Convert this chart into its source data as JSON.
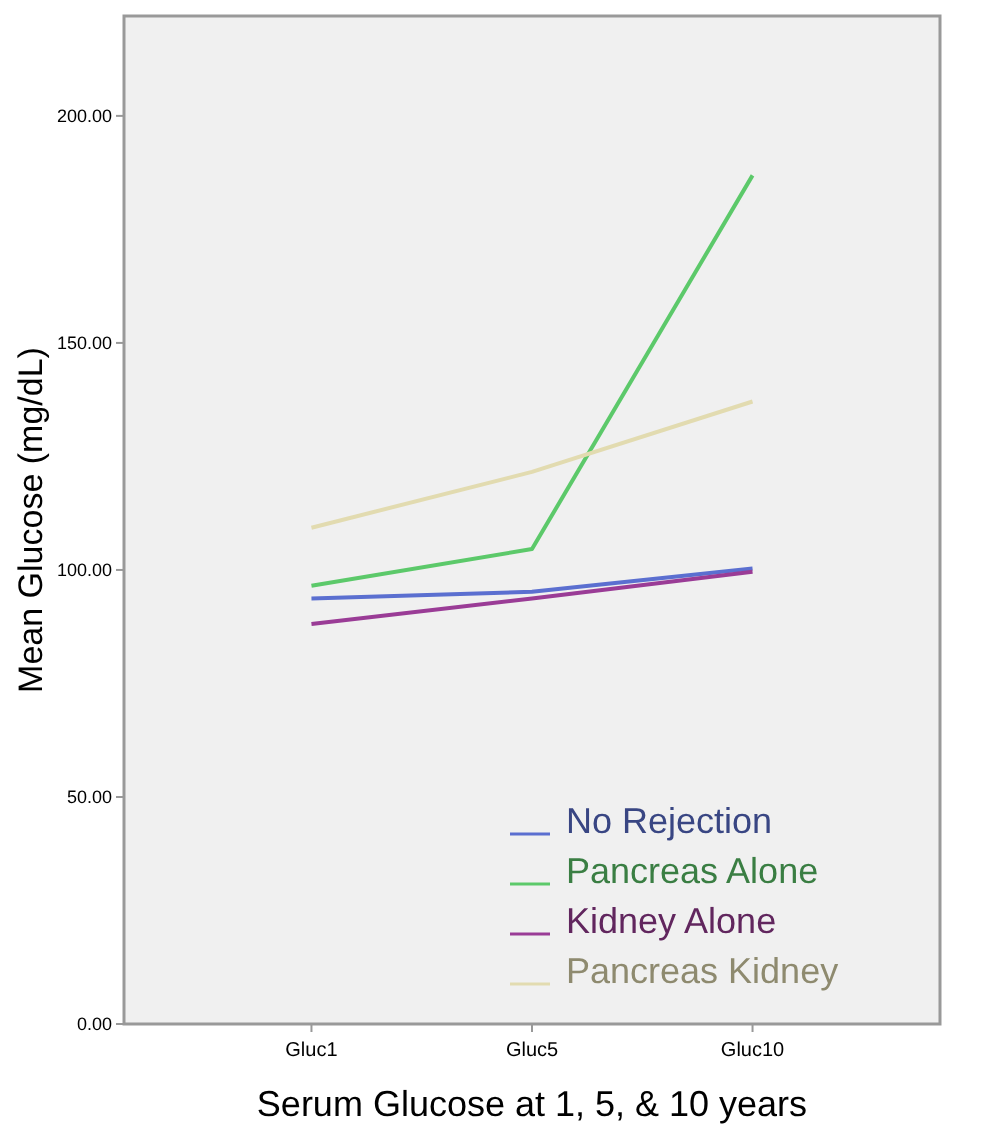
{
  "chart_data": {
    "type": "line",
    "xlabel": "Serum Glucose at 1, 5, & 10 years",
    "ylabel": "Mean Glucose (mg/dL)",
    "categories": [
      "Gluc1",
      "Gluc5",
      "Gluc10"
    ],
    "ylim": [
      0,
      222
    ],
    "yticks": [
      {
        "value": 0,
        "label": "0.00"
      },
      {
        "value": 50,
        "label": "50.00"
      },
      {
        "value": 100,
        "label": "100.00"
      },
      {
        "value": 150,
        "label": "150.00"
      },
      {
        "value": 200,
        "label": "200.00"
      }
    ],
    "grid": false,
    "legend": "bottom right",
    "marker": "none",
    "line_style": "solid",
    "series": [
      {
        "name": "No Rejection",
        "color": "#5b6fd0",
        "values": [
          93.7,
          95.2,
          100.3
        ]
      },
      {
        "name": "Pancreas Alone",
        "color": "#5cc96a",
        "values": [
          96.5,
          104.6,
          186.9
        ]
      },
      {
        "name": "Kidney Alone",
        "color": "#9a3c96",
        "values": [
          88.1,
          93.7,
          99.6
        ]
      },
      {
        "name": "Pancreas Kidney",
        "color": "#e2dbb0",
        "values": [
          109.3,
          121.6,
          137.1
        ]
      }
    ]
  }
}
